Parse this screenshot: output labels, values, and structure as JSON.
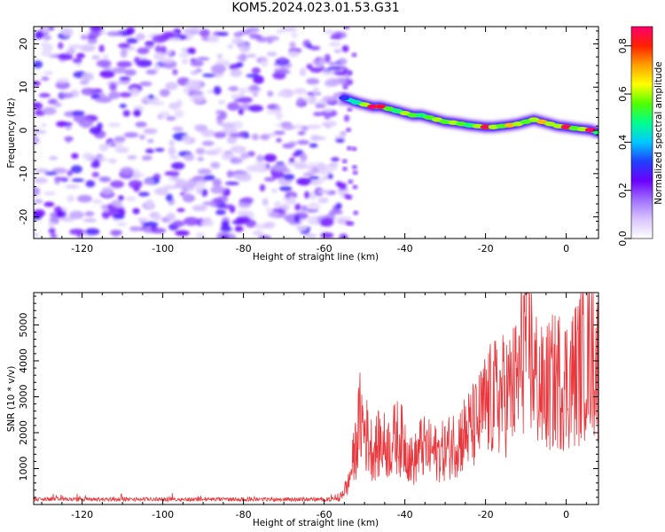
{
  "title": "KOM5.2024.023.01.53.G31",
  "chart_data": [
    {
      "type": "heatmap",
      "xlabel": "Height of straight line (km)",
      "ylabel": "Frequency (Hz)",
      "xlim": [
        -132,
        8
      ],
      "ylim": [
        -25,
        24
      ],
      "xticks": [
        -120,
        -100,
        -80,
        -60,
        -40,
        -20,
        0
      ],
      "yticks": [
        -20,
        -10,
        0,
        10,
        20
      ],
      "colorbar": {
        "label": "Normalized spectral amplitude",
        "range": [
          0.0,
          0.88
        ],
        "ticks": [
          0.0,
          0.2,
          0.4,
          0.6,
          0.8
        ],
        "colormap": [
          "#ffffff",
          "#d9c5ff",
          "#a070ff",
          "#6a00ff",
          "#2040ff",
          "#00c8ff",
          "#00ff90",
          "#50ff00",
          "#ffff00",
          "#ffa000",
          "#ff2000",
          "#ff0070"
        ]
      },
      "noise_region": {
        "x": [
          -132,
          -54
        ],
        "y": [
          -25,
          24
        ],
        "description_level": "low"
      },
      "signal_track": {
        "x": [
          -55,
          -52,
          -50,
          -48,
          -46,
          -44,
          -42,
          -40,
          -38,
          -36,
          -34,
          -32,
          -30,
          -28,
          -26,
          -24,
          -22,
          -20,
          -18,
          -16,
          -14,
          -12,
          -10,
          -8,
          -6,
          -4,
          -2,
          0,
          2,
          4,
          6,
          8
        ],
        "freq": [
          7.5,
          6.5,
          6,
          5.5,
          5.5,
          5,
          4.5,
          4,
          3.5,
          3.5,
          3,
          2.5,
          2,
          1.8,
          1.5,
          1.2,
          1,
          0.8,
          0.8,
          1,
          1.2,
          1.5,
          2,
          2.5,
          2,
          1.5,
          1,
          0.8,
          0.5,
          0.3,
          0.1,
          -0.5
        ],
        "amplitude": [
          0.3,
          0.45,
          0.6,
          0.85,
          0.8,
          0.55,
          0.5,
          0.6,
          0.55,
          0.5,
          0.55,
          0.6,
          0.55,
          0.6,
          0.55,
          0.5,
          0.6,
          0.8,
          0.6,
          0.55,
          0.7,
          0.6,
          0.55,
          0.6,
          0.7,
          0.6,
          0.6,
          0.8,
          0.55,
          0.6,
          0.85,
          0.5
        ]
      }
    },
    {
      "type": "line",
      "xlabel": "Height of straight line (km)",
      "ylabel": "SNR (10 * v/v)",
      "xlim": [
        -132,
        8
      ],
      "ylim": [
        0,
        5900
      ],
      "xticks": [
        -120,
        -100,
        -80,
        -60,
        -40,
        -20,
        0
      ],
      "yticks": [
        1000,
        2000,
        3000,
        4000,
        5000
      ],
      "series": [
        {
          "color": "#e8383d",
          "x": [
            -132,
            -120,
            -100,
            -80,
            -60,
            -56,
            -54,
            -52,
            -51,
            -50,
            -48,
            -46,
            -44,
            -42,
            -40,
            -38,
            -36,
            -34,
            -32,
            -30,
            -28,
            -26,
            -24,
            -22,
            -20,
            -18,
            -16,
            -14,
            -12,
            -10,
            -8,
            -6,
            -4,
            -2,
            0,
            2,
            4,
            6,
            8
          ],
          "y": [
            130,
            130,
            130,
            130,
            140,
            250,
            600,
            1800,
            2600,
            2200,
            1600,
            1800,
            1700,
            2000,
            1800,
            1200,
            1700,
            1600,
            1500,
            1600,
            1800,
            2000,
            2200,
            2400,
            2900,
            3100,
            3200,
            3300,
            3600,
            5200,
            3900,
            3300,
            3500,
            3700,
            3600,
            3800,
            4200,
            4800,
            4000
          ]
        }
      ]
    }
  ]
}
